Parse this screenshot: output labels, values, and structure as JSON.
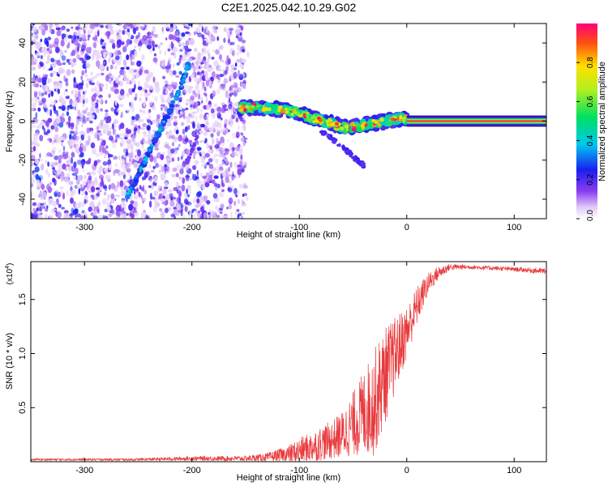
{
  "title": "C2E1.2025.042.10.29.G02",
  "chart_data": [
    {
      "type": "heatmap",
      "xlabel": "Height of straight line (km)",
      "ylabel": "Frequency (Hz)",
      "xlim": [
        -350,
        130
      ],
      "ylim": [
        -50,
        50
      ],
      "xticks": [
        -300,
        -200,
        -100,
        0,
        100
      ],
      "yticks": [
        -40,
        -20,
        0,
        20,
        40
      ],
      "colorbar": {
        "label": "Normalized spectral amplitude",
        "range": [
          0,
          1
        ],
        "ticks": [
          "0.0",
          "0.2",
          "0.4",
          "0.6",
          "0.8"
        ]
      },
      "features": {
        "noise_region_x": [
          -350,
          -150
        ],
        "steep_track": [
          [
            -260,
            -38
          ],
          [
            -250,
            -28
          ],
          [
            -240,
            -16
          ],
          [
            -230,
            -5
          ],
          [
            -220,
            6
          ],
          [
            -210,
            18
          ],
          [
            -203,
            30
          ]
        ],
        "faint_track": [
          [
            -205,
            -22
          ],
          [
            -200,
            -15
          ],
          [
            -195,
            -8
          ]
        ],
        "signal_track": [
          [
            -155,
            7
          ],
          [
            -140,
            7
          ],
          [
            -120,
            6
          ],
          [
            -100,
            4
          ],
          [
            -85,
            1
          ],
          [
            -70,
            -1
          ],
          [
            -60,
            -3
          ],
          [
            -50,
            -3
          ],
          [
            -40,
            -2
          ],
          [
            -30,
            -1
          ],
          [
            -20,
            0
          ],
          [
            -10,
            1
          ],
          [
            0,
            1.5
          ]
        ],
        "signal_tail": [
          [
            -80,
            -5
          ],
          [
            -70,
            -9
          ],
          [
            -60,
            -13
          ],
          [
            -50,
            -18
          ],
          [
            -40,
            -23
          ]
        ],
        "carrier_line": {
          "x": [
            0,
            130
          ],
          "y": 0
        }
      }
    },
    {
      "type": "line",
      "xlabel": "Height of straight line (km)",
      "ylabel": "SNR (10 * v/v)",
      "ylabel_multiplier": "(x10",
      "ylabel_exponent": "4",
      "xlim": [
        -350,
        130
      ],
      "ylim": [
        0,
        1.85
      ],
      "xticks": [
        -300,
        -200,
        -100,
        0,
        100
      ],
      "yticks": [
        0.5,
        1.0,
        1.5
      ],
      "ytick_labels": [
        "0.5",
        "1.0",
        "1.5"
      ],
      "color": "#e8393c",
      "series": [
        {
          "x": [
            -350,
            -300,
            -250,
            -200,
            -150,
            -130,
            -110,
            -100,
            -90,
            -80,
            -70,
            -60,
            -50,
            -40,
            -30,
            -20,
            -10,
            0,
            10,
            20,
            30,
            40,
            60,
            80,
            100,
            130
          ],
          "y": [
            0.02,
            0.02,
            0.02,
            0.03,
            0.03,
            0.04,
            0.07,
            0.1,
            0.13,
            0.17,
            0.2,
            0.25,
            0.35,
            0.45,
            0.55,
            0.8,
            1.0,
            1.2,
            1.45,
            1.65,
            1.75,
            1.8,
            1.8,
            1.79,
            1.78,
            1.76
          ],
          "spread": [
            0.01,
            0.01,
            0.012,
            0.02,
            0.025,
            0.04,
            0.08,
            0.12,
            0.14,
            0.16,
            0.18,
            0.22,
            0.3,
            0.4,
            0.5,
            0.45,
            0.35,
            0.25,
            0.18,
            0.1,
            0.06,
            0.03,
            0.02,
            0.02,
            0.02,
            0.03
          ]
        }
      ]
    }
  ]
}
